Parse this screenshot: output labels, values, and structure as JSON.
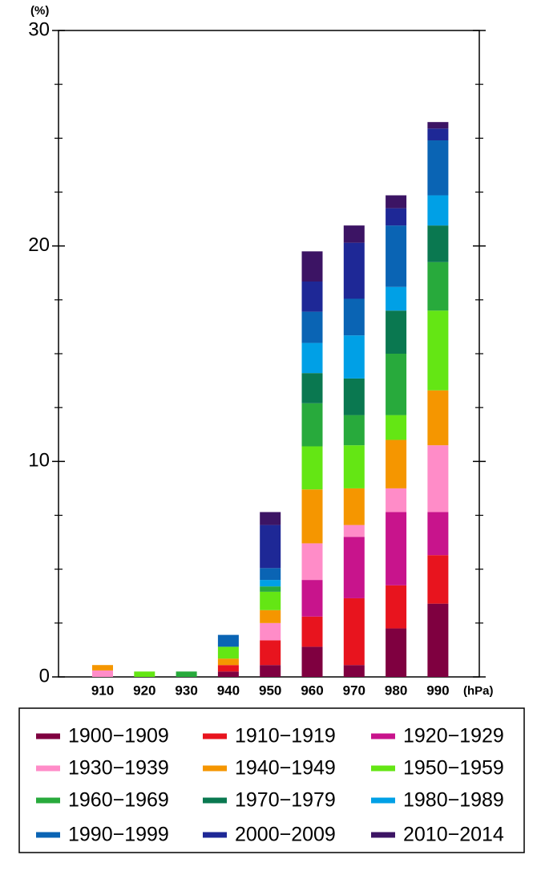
{
  "chart_data": {
    "type": "stacked_bar",
    "y_unit_label": "(%)",
    "x_unit_label": "(hPa)",
    "categories": [
      "910",
      "920",
      "930",
      "940",
      "950",
      "960",
      "970",
      "980",
      "990"
    ],
    "series": [
      {
        "name": "1900−1909",
        "color": "#7f0040",
        "values": [
          0,
          0,
          0,
          0.25,
          0.55,
          1.4,
          0.55,
          2.25,
          3.4
        ]
      },
      {
        "name": "1910−1919",
        "color": "#e8141e",
        "values": [
          0,
          0,
          0,
          0.3,
          1.15,
          1.4,
          3.1,
          2.0,
          2.25
        ]
      },
      {
        "name": "1920−1929",
        "color": "#c8148c",
        "values": [
          0,
          0,
          0,
          0,
          0,
          1.7,
          2.85,
          3.4,
          2.0
        ]
      },
      {
        "name": "1930−1939",
        "color": "#ff8cc8",
        "values": [
          0.3,
          0,
          0,
          0,
          0.8,
          1.7,
          0.55,
          1.1,
          3.1
        ]
      },
      {
        "name": "1940−1949",
        "color": "#f59600",
        "values": [
          0.25,
          0,
          0,
          0.3,
          0.6,
          2.5,
          1.7,
          2.25,
          2.55
        ]
      },
      {
        "name": "1950−1959",
        "color": "#64e614",
        "values": [
          0,
          0.25,
          0,
          0.55,
          0.85,
          2.0,
          2.0,
          1.15,
          3.7
        ]
      },
      {
        "name": "1960−1969",
        "color": "#28aa3c",
        "values": [
          0,
          0,
          0.25,
          0,
          0.25,
          2.0,
          1.4,
          2.85,
          2.25
        ]
      },
      {
        "name": "1970−1979",
        "color": "#0a7850",
        "values": [
          0,
          0,
          0,
          0,
          0,
          1.4,
          1.7,
          2.0,
          1.7
        ]
      },
      {
        "name": "1980−1989",
        "color": "#00a0e6",
        "values": [
          0,
          0,
          0,
          0,
          0.3,
          1.4,
          2.0,
          1.1,
          1.4
        ]
      },
      {
        "name": "1990−1999",
        "color": "#0a64b4",
        "values": [
          0,
          0,
          0,
          0.55,
          0.55,
          1.45,
          1.7,
          2.85,
          2.55
        ]
      },
      {
        "name": "2000−2009",
        "color": "#1e2896",
        "values": [
          0,
          0,
          0,
          0,
          2.0,
          1.4,
          2.6,
          0.8,
          0.55
        ]
      },
      {
        "name": "2010−2014",
        "color": "#3c1464",
        "values": [
          0,
          0,
          0,
          0,
          0.6,
          1.4,
          0.8,
          0.6,
          0.3
        ]
      }
    ],
    "ylim": [
      0,
      30
    ],
    "yticks": [
      0,
      10,
      20,
      30
    ],
    "minor_yticks": [
      2.5,
      5,
      7.5,
      12.5,
      15,
      17.5,
      22.5,
      25,
      27.5
    ],
    "grid": false,
    "legend": "bottom"
  }
}
